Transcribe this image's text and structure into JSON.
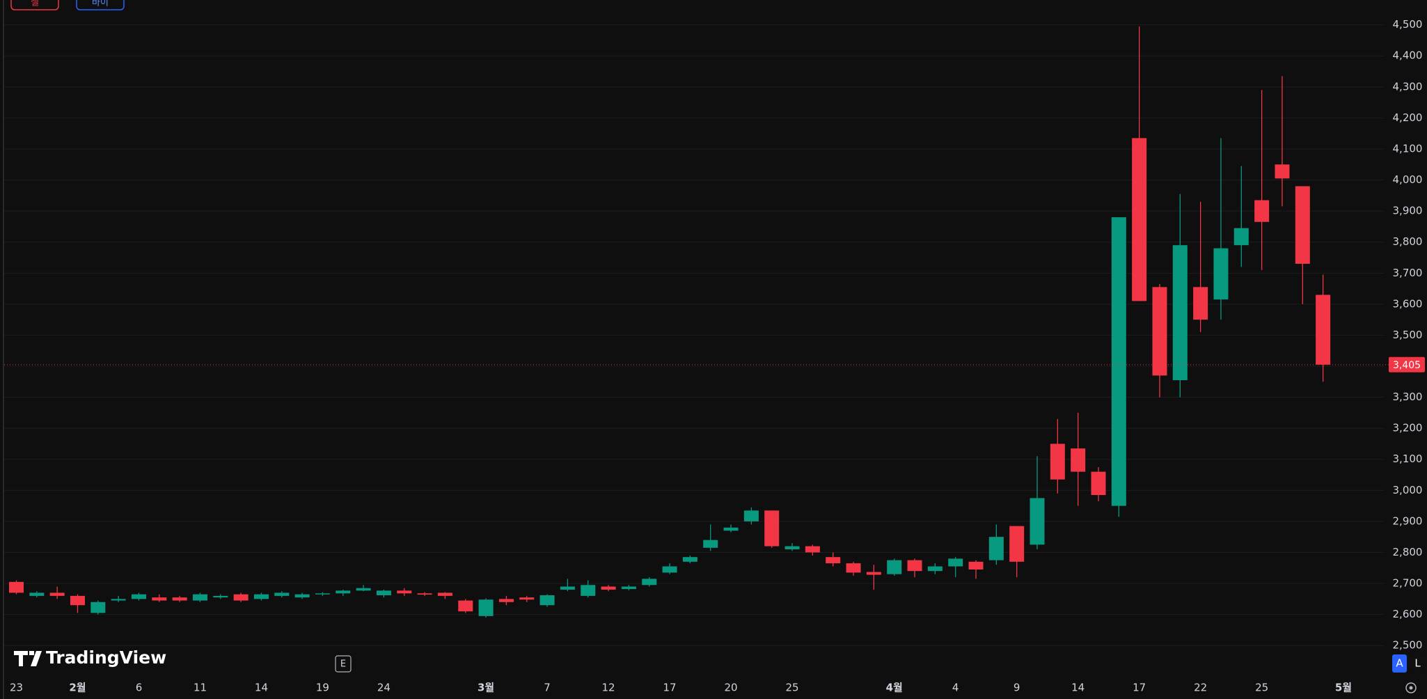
{
  "toolbar": {
    "sell_button": "셀",
    "buy_button": "바이"
  },
  "logo": "TradingView",
  "event_marker": "E",
  "scale_buttons": {
    "auto": "A",
    "log": "L"
  },
  "chart_data": {
    "type": "candlestick",
    "categories": [
      "23",
      null,
      null,
      "2월",
      null,
      null,
      "6",
      null,
      null,
      "11",
      null,
      null,
      "14",
      null,
      null,
      "19",
      null,
      null,
      "24",
      null,
      null,
      null,
      null,
      "3월",
      null,
      null,
      "7",
      null,
      null,
      "12",
      null,
      null,
      "17",
      null,
      null,
      "20",
      null,
      null,
      "25",
      null,
      null,
      null,
      null,
      "4월",
      null,
      null,
      "4",
      null,
      null,
      "9",
      null,
      null,
      "14",
      null,
      null,
      "17",
      null,
      null,
      "22",
      null,
      null,
      "25",
      null,
      null,
      null,
      "5월"
    ],
    "open": [
      2705,
      2660,
      2670,
      2660,
      2605,
      2645,
      2650,
      2655,
      2655,
      2645,
      2655,
      2665,
      2650,
      2660,
      2655,
      2665,
      2668,
      2677,
      2662,
      2677,
      2668,
      2670,
      2645,
      2595,
      2650,
      2655,
      2630,
      2680,
      2660,
      2690,
      2682,
      2695,
      2735,
      2770,
      2815,
      2870,
      2900,
      2935,
      2810,
      2820,
      2785,
      2765,
      2737,
      2730,
      2775,
      2740,
      2755,
      2770,
      2775,
      2885,
      2825,
      3150,
      3135,
      3060,
      2950,
      4135,
      3655,
      3355,
      3655,
      3615,
      3790,
      3935,
      4050,
      3980,
      3630,
      null
    ],
    "high": [
      2710,
      2675,
      2690,
      2665,
      2645,
      2660,
      2670,
      2665,
      2660,
      2670,
      2665,
      2670,
      2670,
      2675,
      2670,
      2672,
      2680,
      2695,
      2680,
      2685,
      2672,
      2672,
      2650,
      2652,
      2660,
      2660,
      2665,
      2715,
      2710,
      2695,
      2695,
      2720,
      2765,
      2790,
      2890,
      2890,
      2945,
      2935,
      2830,
      2825,
      2800,
      2770,
      2760,
      2780,
      2780,
      2765,
      2785,
      2775,
      2890,
      2885,
      3110,
      3230,
      3250,
      3075,
      3880,
      4495,
      3665,
      3955,
      3930,
      4135,
      4045,
      4290,
      4335,
      3980,
      3695,
      null
    ],
    "low": [
      2665,
      2655,
      2650,
      2605,
      2600,
      2640,
      2645,
      2640,
      2640,
      2640,
      2650,
      2640,
      2645,
      2655,
      2650,
      2660,
      2660,
      2675,
      2655,
      2660,
      2660,
      2650,
      2605,
      2590,
      2630,
      2640,
      2625,
      2675,
      2655,
      2675,
      2678,
      2690,
      2730,
      2765,
      2805,
      2865,
      2890,
      2815,
      2805,
      2790,
      2755,
      2725,
      2680,
      2725,
      2720,
      2730,
      2720,
      2715,
      2760,
      2720,
      2810,
      2990,
      2950,
      2965,
      2915,
      3610,
      3300,
      3300,
      3510,
      3550,
      3720,
      3710,
      3915,
      3600,
      3350,
      null
    ],
    "close": [
      2670,
      2670,
      2660,
      2630,
      2640,
      2650,
      2665,
      2645,
      2645,
      2665,
      2660,
      2645,
      2665,
      2670,
      2665,
      2668,
      2677,
      2685,
      2677,
      2668,
      2664,
      2660,
      2610,
      2648,
      2640,
      2648,
      2662,
      2690,
      2695,
      2680,
      2690,
      2715,
      2755,
      2785,
      2840,
      2880,
      2935,
      2820,
      2820,
      2800,
      2765,
      2735,
      2728,
      2775,
      2740,
      2755,
      2780,
      2745,
      2850,
      2770,
      2975,
      3035,
      3060,
      2985,
      3880,
      3610,
      3370,
      3790,
      3550,
      3780,
      3845,
      3865,
      4005,
      3730,
      3405,
      null
    ],
    "up_color": "#089981",
    "down_color": "#f23645",
    "ylim": [
      2395,
      4580
    ],
    "yticks": [
      {
        "value": 2500,
        "label": "2,500"
      },
      {
        "value": 2600,
        "label": "2,600"
      },
      {
        "value": 2700,
        "label": "2,700"
      },
      {
        "value": 2800,
        "label": "2,800"
      },
      {
        "value": 2900,
        "label": "2,900"
      },
      {
        "value": 3000,
        "label": "3,000"
      },
      {
        "value": 3100,
        "label": "3,100"
      },
      {
        "value": 3200,
        "label": "3,200"
      },
      {
        "value": 3300,
        "label": "3,300"
      },
      {
        "value": 3400,
        "label": "3,400"
      },
      {
        "value": 3500,
        "label": "3,500"
      },
      {
        "value": 3600,
        "label": "3,600"
      },
      {
        "value": 3700,
        "label": "3,700"
      },
      {
        "value": 3800,
        "label": "3,800"
      },
      {
        "value": 3900,
        "label": "3,900"
      },
      {
        "value": 4000,
        "label": "4,000"
      },
      {
        "value": 4100,
        "label": "4,100"
      },
      {
        "value": 4200,
        "label": "4,200"
      },
      {
        "value": 4300,
        "label": "4,300"
      },
      {
        "value": 4400,
        "label": "4,400"
      },
      {
        "value": 4500,
        "label": "4,500"
      }
    ],
    "grid": true,
    "price_line": {
      "value": 3405,
      "label": "3,405"
    }
  }
}
